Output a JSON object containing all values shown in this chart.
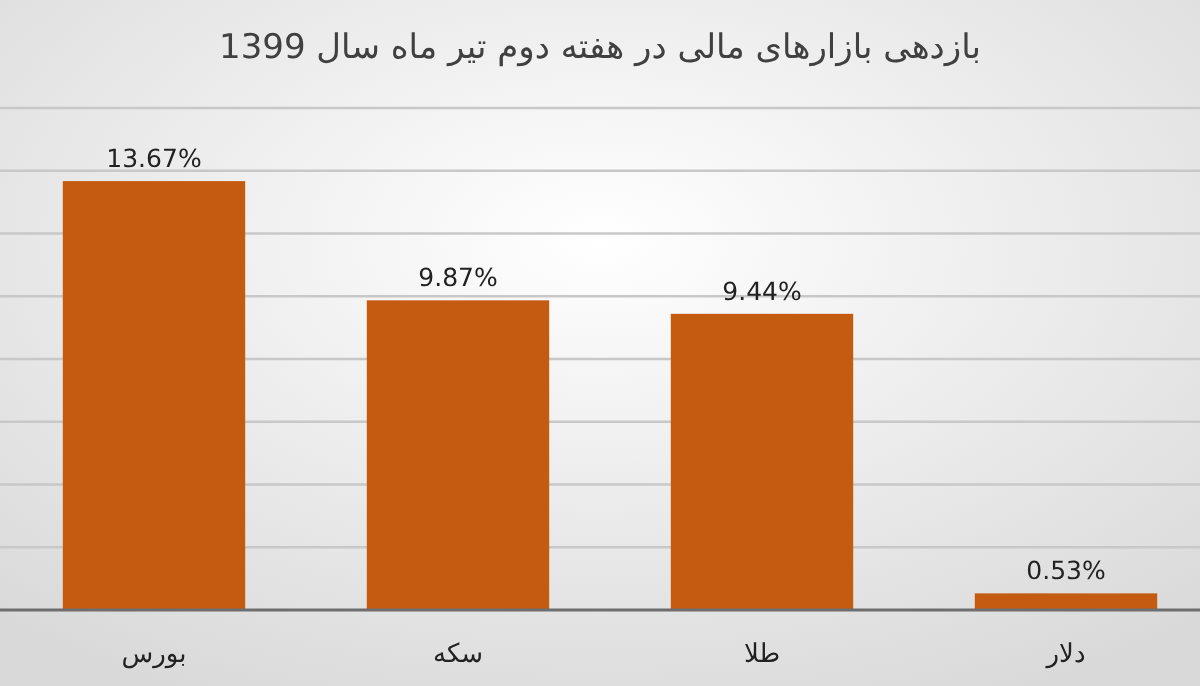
{
  "chart_data": {
    "type": "bar",
    "title": "بازدهی بازارهای مالی در هفته دوم تیر ماه سال 1399",
    "categories": [
      "بورس",
      "سکه",
      "طلا",
      "دلار"
    ],
    "values": [
      13.67,
      9.87,
      9.44,
      0.53
    ],
    "value_labels": [
      "13.67%",
      "9.87%",
      "9.44%",
      "0.53%"
    ],
    "color": "#c55a11",
    "grid": "y",
    "tick_labels": "x"
  }
}
